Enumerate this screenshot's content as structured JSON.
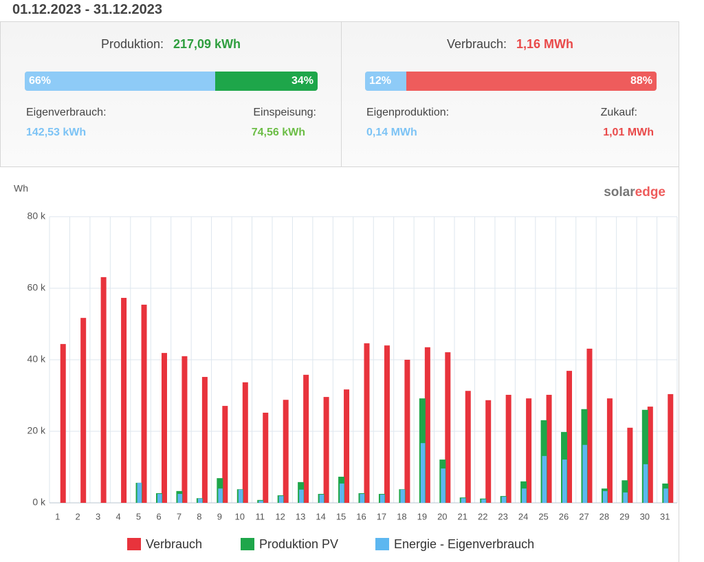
{
  "header": {
    "date_range": "01.12.2023 - 31.12.2023"
  },
  "panels": [
    {
      "title": "Produktion:",
      "total": "217,09 kWh",
      "segments": [
        {
          "value": 66,
          "label": "66%",
          "color": "#8ecbf7"
        },
        {
          "value": 34,
          "label": "34%",
          "color": "#1ea64a"
        }
      ],
      "left": {
        "label": "Eigenverbrauch:",
        "value": "142,53 kWh"
      },
      "right": {
        "label": "Einspeisung:",
        "value": "74,56 kWh"
      }
    },
    {
      "title": "Verbrauch:",
      "total": "1,16 MWh",
      "segments": [
        {
          "value": 12,
          "label": "12%",
          "color": "#8ecbf7"
        },
        {
          "value": 88,
          "label": "88%",
          "color": "#ee5c5c"
        }
      ],
      "left": {
        "label": "Eigenproduktion:",
        "value": "0,14 MWh"
      },
      "right": {
        "label": "Zukauf:",
        "value": "1,01 MWh"
      }
    }
  ],
  "chart_data": {
    "type": "bar",
    "y_label": "Wh",
    "logo_text": [
      "solar",
      "edge"
    ],
    "categories": [
      "1",
      "2",
      "3",
      "4",
      "5",
      "6",
      "7",
      "8",
      "9",
      "10",
      "11",
      "12",
      "13",
      "14",
      "15",
      "16",
      "17",
      "18",
      "19",
      "20",
      "21",
      "22",
      "23",
      "24",
      "25",
      "26",
      "27",
      "28",
      "29",
      "30",
      "31"
    ],
    "series": [
      {
        "name": "Verbrauch",
        "color": "#e8333c",
        "values": [
          44400,
          51700,
          63100,
          57300,
          55400,
          41900,
          41000,
          35200,
          27100,
          33700,
          25200,
          28800,
          35800,
          29600,
          31700,
          44600,
          44000,
          40000,
          43500,
          42100,
          31300,
          28700,
          30200,
          29200,
          30200,
          36900,
          43100,
          29200,
          21000,
          26900,
          30400
        ]
      },
      {
        "name": "Produktion PV",
        "color": "#1ea64a",
        "values": [
          0,
          0,
          0,
          0,
          5600,
          2700,
          3300,
          1300,
          6900,
          3800,
          800,
          2100,
          5800,
          2500,
          7300,
          2700,
          2500,
          3800,
          29200,
          12100,
          1500,
          1200,
          1900,
          6000,
          23100,
          19800,
          26200,
          4000,
          6300,
          26000,
          5400
        ]
      },
      {
        "name": "Energie - Eigenverbrauch",
        "color": "#5db7f0",
        "values": [
          0,
          0,
          0,
          0,
          5600,
          2500,
          2500,
          1200,
          4000,
          3700,
          600,
          1900,
          3700,
          2300,
          5400,
          2500,
          2300,
          3700,
          16700,
          9600,
          1300,
          1000,
          1700,
          4000,
          13100,
          12100,
          16200,
          3300,
          2900,
          10800,
          4000
        ]
      }
    ],
    "ylim": [
      0,
      80000
    ],
    "yticks": [
      {
        "value": 0,
        "label": "0 k"
      },
      {
        "value": 20000,
        "label": "20 k"
      },
      {
        "value": 40000,
        "label": "40 k"
      },
      {
        "value": 60000,
        "label": "60 k"
      },
      {
        "value": 80000,
        "label": "80 k"
      }
    ],
    "grid": true,
    "legend": "bottom"
  }
}
